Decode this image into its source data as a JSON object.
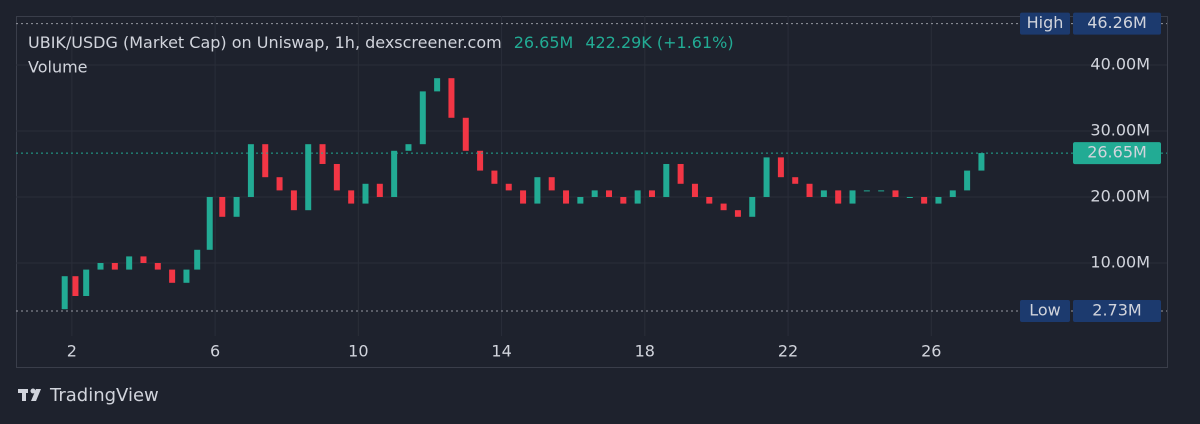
{
  "chart_data": {
    "type": "candlestick",
    "title": "UBIK/USDG (Market Cap) on Uniswap, 1h, dexscreener.com",
    "change_label": "422.29K (+1.61%)",
    "volume_label": "Volume",
    "brand": "TradingView",
    "x": [
      1.8,
      2.1,
      2.4,
      2.8,
      3.2,
      3.6,
      4.0,
      4.4,
      4.8,
      5.2,
      5.5,
      5.85,
      6.2,
      6.6,
      7.0,
      7.4,
      7.8,
      8.2,
      8.6,
      9.0,
      9.4,
      9.8,
      10.2,
      10.6,
      11.0,
      11.4,
      11.8,
      12.2,
      12.6,
      13.0,
      13.4,
      13.8,
      14.2,
      14.6,
      15.0,
      15.4,
      15.8,
      16.2,
      16.6,
      17.0,
      17.4,
      17.8,
      18.2,
      18.6,
      19.0,
      19.4,
      19.8,
      20.2,
      20.6,
      21.0,
      21.4,
      21.8,
      22.2,
      22.6,
      23.0,
      23.4,
      23.8,
      24.2,
      24.6,
      25.0,
      25.4,
      25.8,
      26.2,
      26.6,
      27.0,
      27.4
    ],
    "open": [
      3,
      8,
      5,
      9,
      10,
      9,
      11,
      10,
      9,
      7,
      9,
      12,
      20,
      17,
      20,
      28,
      23,
      21,
      18,
      28,
      25,
      21,
      19,
      22,
      20,
      27,
      28,
      36,
      38,
      32,
      27,
      24,
      22,
      21,
      19,
      23,
      21,
      19,
      20,
      21,
      20,
      19,
      21,
      20,
      25,
      22,
      20,
      19,
      18,
      17,
      20,
      26,
      23,
      22,
      20,
      21,
      19,
      21,
      21,
      21,
      20,
      20,
      19,
      20,
      21,
      24
    ],
    "high": {
      "name": "High",
      "value": 46.26,
      "label": "46.26M"
    },
    "low": {
      "name": "Low",
      "value": 2.73,
      "label": "2.73M"
    },
    "close": [
      8,
      5,
      9,
      10,
      9,
      11,
      10,
      9,
      7,
      9,
      12,
      20,
      17,
      20,
      28,
      23,
      21,
      18,
      28,
      25,
      21,
      19,
      22,
      20,
      27,
      28,
      36,
      38,
      32,
      27,
      24,
      22,
      21,
      19,
      23,
      21,
      19,
      20,
      21,
      20,
      19,
      21,
      20,
      25,
      22,
      20,
      19,
      18,
      17,
      20,
      26,
      23,
      22,
      20,
      21,
      19,
      21,
      21,
      21,
      20,
      20,
      19,
      20,
      21,
      24,
      26.65
    ],
    "up_color": "#22ab94",
    "down_color": "#f23645",
    "xlim": [
      0.44,
      29.65
    ],
    "xticks": [
      2,
      6,
      10,
      14,
      18,
      22,
      26
    ],
    "ylim": [
      -1.06,
      47.42
    ],
    "yticks": [
      {
        "value": 10,
        "label": "10.00M"
      },
      {
        "value": 20,
        "label": "20.00M"
      },
      {
        "value": 30,
        "label": "30.00M"
      },
      {
        "value": 40,
        "label": "40.00M"
      }
    ],
    "grid": true,
    "last": {
      "value": 26.65,
      "label": "26.65M"
    }
  }
}
